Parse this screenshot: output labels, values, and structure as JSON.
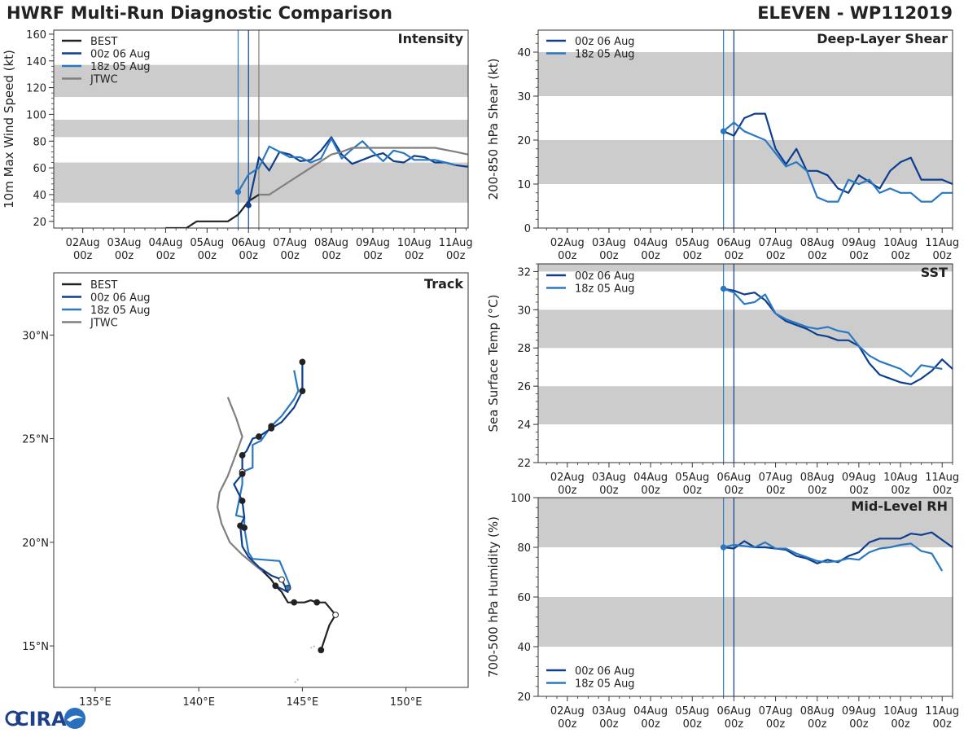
{
  "header": {
    "title": "HWRF Multi-Run Diagnostic Comparison",
    "storm": "ELEVEN - WP112019"
  },
  "logo": {
    "text": "CIRA"
  },
  "colors": {
    "best": "#222222",
    "run1": "#0d3f8e",
    "run2": "#2a78c2",
    "jtwc": "#7f7f7f",
    "band": "#cccccc"
  },
  "x_ticks": [
    "02Aug",
    "03Aug",
    "04Aug",
    "05Aug",
    "06Aug",
    "07Aug",
    "08Aug",
    "09Aug",
    "10Aug",
    "11Aug"
  ],
  "x_ticks_sub": [
    "00z",
    "00z",
    "00z",
    "00z",
    "00z",
    "00z",
    "00z",
    "00z",
    "00z",
    "00z"
  ],
  "chart_data": [
    {
      "type": "line",
      "title": "Intensity",
      "ylabel": "10m Max Wind Speed (kt)",
      "xlabel": "",
      "x_unit": "days since 02Aug 00z",
      "xlim": [
        -0.7,
        9.3
      ],
      "ylim": [
        15,
        163
      ],
      "yticks": [
        20,
        40,
        60,
        80,
        100,
        120,
        140,
        160
      ],
      "bands": [
        [
          34,
          64
        ],
        [
          83,
          96
        ],
        [
          113,
          137
        ]
      ],
      "vlines": [
        {
          "x": 3.75,
          "series": "18z 05 Aug"
        },
        {
          "x": 4.0,
          "series": "00z 06 Aug"
        },
        {
          "x": 4.25,
          "series": "JTWC"
        }
      ],
      "legend": [
        "BEST",
        "00z 06 Aug",
        "18z 05 Aug",
        "JTWC"
      ],
      "series": [
        {
          "name": "BEST",
          "x": [
            2.0,
            2.5,
            2.75,
            3.0,
            3.25,
            3.5,
            3.75,
            4.0,
            4.25
          ],
          "y": [
            15,
            15,
            20,
            20,
            20,
            20,
            25,
            35,
            40
          ]
        },
        {
          "name": "00z 06 Aug",
          "x": [
            4.0,
            4.25,
            4.5,
            4.75,
            5.0,
            5.25,
            5.5,
            5.75,
            6.0,
            6.25,
            6.5,
            6.75,
            7.0,
            7.25,
            7.5,
            7.75,
            8.0,
            8.25,
            8.5,
            8.75,
            9.0,
            9.25,
            9.3
          ],
          "y": [
            32,
            68,
            58,
            72,
            70,
            65,
            66,
            73,
            83,
            70,
            63,
            66,
            69,
            71,
            65,
            64,
            69,
            68,
            64,
            64,
            62,
            61,
            61
          ]
        },
        {
          "name": "18z 05 Aug",
          "x": [
            3.75,
            4.0,
            4.25,
            4.5,
            4.75,
            5.0,
            5.25,
            5.5,
            5.75,
            6.0,
            6.25,
            6.5,
            6.75,
            7.0,
            7.25,
            7.5,
            7.75,
            8.0,
            8.25,
            8.5,
            8.75,
            9.0
          ],
          "y": [
            42,
            55,
            60,
            76,
            72,
            68,
            68,
            64,
            67,
            82,
            67,
            74,
            80,
            72,
            65,
            73,
            71,
            66,
            66,
            66,
            64,
            62
          ]
        },
        {
          "name": "JTWC",
          "x": [
            4.25,
            4.5,
            5.0,
            5.5,
            6.0,
            6.25,
            6.5,
            6.75,
            7.0,
            7.5,
            8.0,
            8.5,
            9.0,
            9.3
          ],
          "y": [
            40,
            40,
            50,
            60,
            70,
            72,
            75,
            75,
            75,
            75,
            75,
            75,
            72,
            70
          ]
        }
      ]
    },
    {
      "type": "line",
      "title": "Deep-Layer Shear",
      "ylabel": "200-850 hPa Shear (kt)",
      "xlabel": "",
      "x_unit": "days since 02Aug 00z",
      "xlim": [
        -0.7,
        9.25
      ],
      "ylim": [
        0,
        45
      ],
      "yticks": [
        0,
        10,
        20,
        30,
        40
      ],
      "bands": [
        [
          10,
          20
        ],
        [
          30,
          40
        ]
      ],
      "vlines": [
        {
          "x": 3.75,
          "series": "18z 05 Aug"
        },
        {
          "x": 4.0,
          "series": "00z 06 Aug"
        }
      ],
      "legend": [
        "00z 06 Aug",
        "18z 05 Aug"
      ],
      "series": [
        {
          "name": "00z 06 Aug",
          "x": [
            3.75,
            4.0,
            4.25,
            4.5,
            4.75,
            5.0,
            5.25,
            5.5,
            5.75,
            6.0,
            6.25,
            6.5,
            6.75,
            7.0,
            7.25,
            7.5,
            7.75,
            8.0,
            8.25,
            8.5,
            8.75,
            9.0,
            9.25
          ],
          "y": [
            22,
            21,
            25,
            26,
            26,
            18,
            14.5,
            18,
            13,
            13,
            12,
            9,
            8,
            12,
            10.5,
            9,
            13,
            15,
            16,
            11,
            11,
            11,
            10
          ]
        },
        {
          "name": "18z 05 Aug",
          "x": [
            3.75,
            4.0,
            4.25,
            4.5,
            4.75,
            5.0,
            5.25,
            5.5,
            5.75,
            6.0,
            6.25,
            6.5,
            6.75,
            7.0,
            7.25,
            7.5,
            7.75,
            8.0,
            8.25,
            8.5,
            8.75,
            9.0,
            9.25
          ],
          "y": [
            22,
            24,
            22,
            21,
            20,
            17,
            14,
            15,
            13,
            7,
            6,
            6,
            11,
            10,
            11,
            8,
            9,
            8,
            8,
            6,
            6,
            8,
            8
          ]
        }
      ]
    },
    {
      "type": "scatter",
      "title": "Track",
      "ylabel": "",
      "xlabel": "",
      "xlim": [
        133.0,
        153.0
      ],
      "ylim": [
        13.0,
        33.0
      ],
      "x_ticks": [
        135,
        140,
        145,
        150
      ],
      "x_tick_labels": [
        "135°E",
        "140°E",
        "145°E",
        "150°E"
      ],
      "y_ticks": [
        15,
        20,
        25,
        30
      ],
      "y_tick_labels": [
        "15°N",
        "20°N",
        "25°N",
        "30°N"
      ],
      "legend": [
        "BEST",
        "00z 06 Aug",
        "18z 05 Aug",
        "JTWC"
      ],
      "series": [
        {
          "name": "BEST",
          "lon": [
            145.9,
            146.1,
            146.3,
            146.6,
            146.1,
            145.7,
            145.4,
            145.1,
            144.9,
            144.6,
            144.3,
            144.0,
            143.7,
            143.5,
            143.1
          ],
          "lat": [
            14.8,
            15.4,
            16.0,
            16.5,
            17.1,
            17.1,
            17.2,
            17.1,
            17.1,
            17.1,
            17.1,
            17.6,
            17.9,
            18.2,
            18.6
          ],
          "filled": [
            true,
            false,
            false,
            false,
            false,
            true,
            false,
            false,
            false,
            true,
            false,
            false,
            true,
            false,
            true
          ],
          "marked": [
            true,
            false,
            false,
            true,
            false,
            true,
            false,
            false,
            false,
            true,
            false,
            false,
            true,
            false,
            false
          ]
        },
        {
          "name": "00z 06 Aug",
          "lon": [
            143.7,
            144.3,
            144.0,
            143.5,
            142.9,
            142.4,
            142.1,
            142.0,
            142.2,
            142.1,
            141.7,
            142.1,
            142.1,
            142.3,
            142.6,
            142.9,
            143.5,
            144.0,
            144.6,
            145.0,
            145.0
          ],
          "lat": [
            17.9,
            17.6,
            18.2,
            18.4,
            18.8,
            19.3,
            19.8,
            20.8,
            21.2,
            22.0,
            22.8,
            23.3,
            24.2,
            24.4,
            25.0,
            25.1,
            25.5,
            25.8,
            26.5,
            27.3,
            28.7
          ],
          "filled": [
            false,
            false,
            false,
            false,
            false,
            false,
            false,
            true,
            false,
            true,
            false,
            true,
            true,
            false,
            false,
            true,
            true,
            false,
            false,
            true,
            true
          ],
          "marked": [
            false,
            false,
            true,
            false,
            false,
            false,
            false,
            true,
            false,
            true,
            false,
            true,
            true,
            false,
            false,
            true,
            true,
            false,
            false,
            true,
            true
          ]
        },
        {
          "name": "18z 05 Aug",
          "lon": [
            144.3,
            144.4,
            144.2,
            143.9,
            142.6,
            142.4,
            142.2,
            142.2,
            141.8,
            141.9,
            142.1,
            142.1,
            142.6,
            142.6,
            143.0,
            143.5,
            144.0,
            144.6,
            144.8,
            144.6
          ],
          "lat": [
            17.8,
            17.9,
            18.4,
            19.1,
            19.2,
            19.5,
            20.7,
            21.2,
            21.3,
            21.8,
            22.8,
            23.4,
            23.6,
            24.7,
            24.9,
            25.6,
            26.1,
            26.9,
            27.3,
            28.3
          ],
          "filled": [
            true,
            false,
            false,
            false,
            false,
            false,
            true,
            false,
            false,
            false,
            false,
            false,
            false,
            false,
            false,
            true,
            false,
            false,
            false,
            false
          ],
          "marked": [
            true,
            false,
            false,
            false,
            false,
            false,
            true,
            false,
            false,
            false,
            false,
            true,
            false,
            false,
            false,
            true,
            false,
            false,
            false,
            false
          ]
        },
        {
          "name": "JTWC",
          "lon": [
            143.2,
            142.7,
            142.1,
            141.5,
            141.1,
            140.9,
            141.0,
            141.4,
            141.7,
            142.1,
            141.8,
            141.6,
            141.4
          ],
          "lat": [
            18.5,
            18.9,
            19.4,
            20.0,
            20.9,
            21.7,
            22.4,
            23.2,
            24.0,
            25.1,
            26.0,
            26.5,
            27.0
          ]
        }
      ]
    },
    {
      "type": "line",
      "title": "SST",
      "ylabel": "Sea Surface Temp (°C)",
      "xlabel": "",
      "x_unit": "days since 02Aug 00z",
      "xlim": [
        -0.7,
        9.25
      ],
      "ylim": [
        22,
        32.4
      ],
      "yticks": [
        22,
        24,
        26,
        28,
        30,
        32
      ],
      "bands": [
        [
          24,
          26
        ],
        [
          28,
          30
        ],
        [
          32,
          32.4
        ]
      ],
      "vlines": [
        {
          "x": 3.75,
          "series": "18z 05 Aug"
        },
        {
          "x": 4.0,
          "series": "00z 06 Aug"
        }
      ],
      "legend": [
        "00z 06 Aug",
        "18z 05 Aug"
      ],
      "series": [
        {
          "name": "00z 06 Aug",
          "x": [
            3.75,
            4.0,
            4.25,
            4.5,
            4.75,
            5.0,
            5.25,
            5.5,
            5.75,
            6.0,
            6.25,
            6.5,
            6.75,
            7.0,
            7.25,
            7.5,
            7.75,
            8.0,
            8.25,
            8.5,
            8.75,
            9.0,
            9.25
          ],
          "y": [
            31.1,
            31.0,
            30.8,
            30.9,
            30.5,
            29.8,
            29.4,
            29.2,
            29.0,
            28.7,
            28.6,
            28.4,
            28.4,
            28.1,
            27.2,
            26.6,
            26.4,
            26.2,
            26.1,
            26.4,
            26.8,
            27.4,
            26.9
          ]
        },
        {
          "name": "18z 05 Aug",
          "x": [
            3.75,
            4.0,
            4.25,
            4.5,
            4.75,
            5.0,
            5.25,
            5.5,
            5.75,
            6.0,
            6.25,
            6.5,
            6.75,
            7.0,
            7.25,
            7.5,
            7.75,
            8.0,
            8.25,
            8.5,
            8.75,
            9.0
          ],
          "y": [
            31.1,
            30.9,
            30.3,
            30.4,
            30.8,
            29.8,
            29.5,
            29.3,
            29.1,
            29.0,
            29.1,
            28.9,
            28.8,
            28.1,
            27.6,
            27.3,
            27.1,
            26.9,
            26.5,
            27.1,
            27.0,
            26.9
          ]
        }
      ]
    },
    {
      "type": "line",
      "title": "Mid-Level RH",
      "ylabel": "700-500 hPa Humidity (%)",
      "xlabel": "",
      "x_unit": "days since 02Aug 00z",
      "xlim": [
        -0.7,
        9.25
      ],
      "ylim": [
        20,
        100
      ],
      "yticks": [
        20,
        40,
        60,
        80,
        100
      ],
      "bands": [
        [
          40,
          60
        ],
        [
          80,
          100
        ]
      ],
      "vlines": [
        {
          "x": 3.75,
          "series": "18z 05 Aug"
        },
        {
          "x": 4.0,
          "series": "00z 06 Aug"
        }
      ],
      "legend": [
        "00z 06 Aug",
        "18z 05 Aug"
      ],
      "series": [
        {
          "name": "00z 06 Aug",
          "x": [
            3.75,
            4.0,
            4.25,
            4.5,
            4.75,
            5.0,
            5.25,
            5.5,
            5.75,
            6.0,
            6.25,
            6.5,
            6.75,
            7.0,
            7.25,
            7.5,
            7.75,
            8.0,
            8.25,
            8.5,
            8.75,
            9.0,
            9.25
          ],
          "y": [
            80,
            79.5,
            82.5,
            80,
            80,
            79.5,
            79,
            76.5,
            75.5,
            73.5,
            75,
            74,
            76.5,
            78,
            82,
            83.5,
            83.5,
            83.5,
            85.5,
            85,
            86,
            83,
            80
          ]
        },
        {
          "name": "18z 05 Aug",
          "x": [
            3.75,
            4.0,
            4.25,
            4.5,
            4.75,
            5.0,
            5.25,
            5.5,
            5.75,
            6.0,
            6.25,
            6.5,
            6.75,
            7.0,
            7.25,
            7.5,
            7.75,
            8.0,
            8.25,
            8.5,
            8.75,
            9.0
          ],
          "y": [
            80,
            81,
            80.5,
            80,
            82,
            79.5,
            79.5,
            77.5,
            76,
            74.5,
            74,
            74.5,
            75.5,
            75,
            78,
            79.5,
            80,
            81,
            81.5,
            78.5,
            77.5,
            70.5
          ]
        }
      ]
    }
  ]
}
